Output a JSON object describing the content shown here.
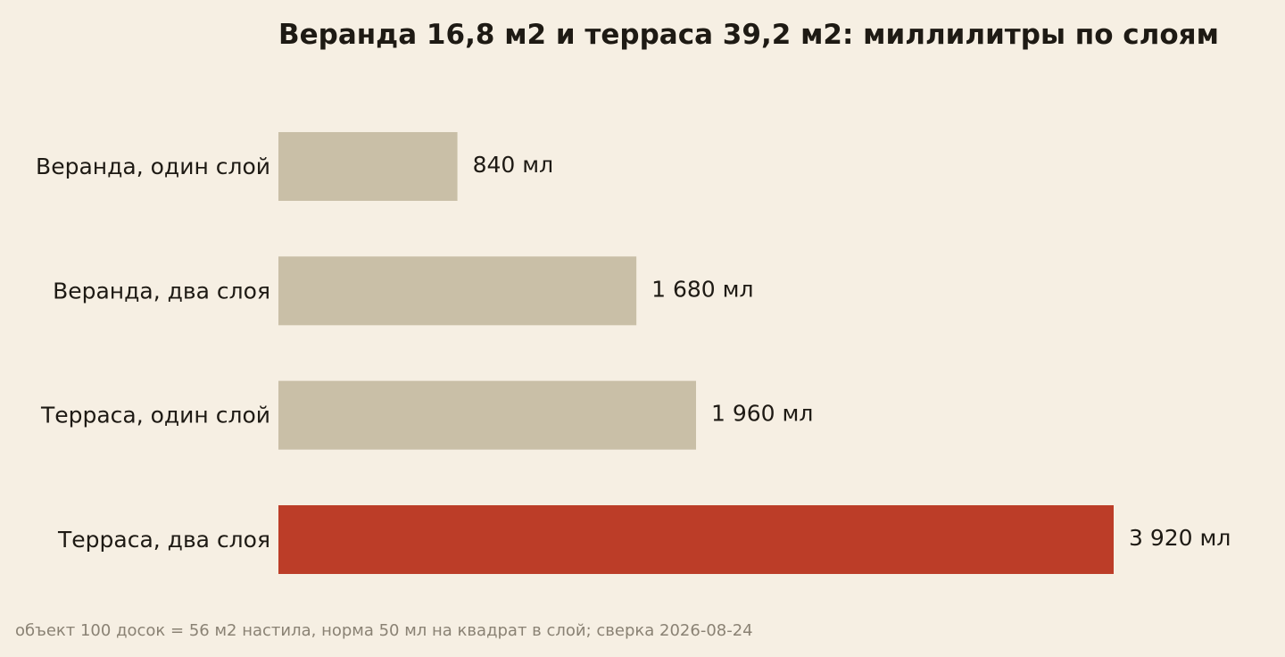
{
  "chart_data": {
    "type": "bar",
    "orientation": "horizontal",
    "title": "Веранда 16,8 м2 и терраса 39,2 м2: миллилитры по слоям",
    "categories": [
      "Веранда, один слой",
      "Веранда, два слоя",
      "Терраса, один слой",
      "Терраса, два слоя"
    ],
    "values": [
      840,
      1680,
      1960,
      3920
    ],
    "value_labels": [
      "840 мл",
      "1 680 мл",
      "1 960 мл",
      "3 920 мл"
    ],
    "unit": "мл",
    "xlabel": "",
    "ylabel": "",
    "xlim": [
      0,
      3920
    ],
    "grid": false,
    "legend": "none",
    "colors": {
      "default_bar": "#c9bfa7",
      "highlight_bar": "#bc3d28",
      "text": "#1e1a14",
      "background": "#f6efe3"
    },
    "highlight_index": 3
  },
  "footnote": "объект 100 досок = 56 м2 настила, норма 50 мл на квадрат в слой; сверка 2026-08-24"
}
